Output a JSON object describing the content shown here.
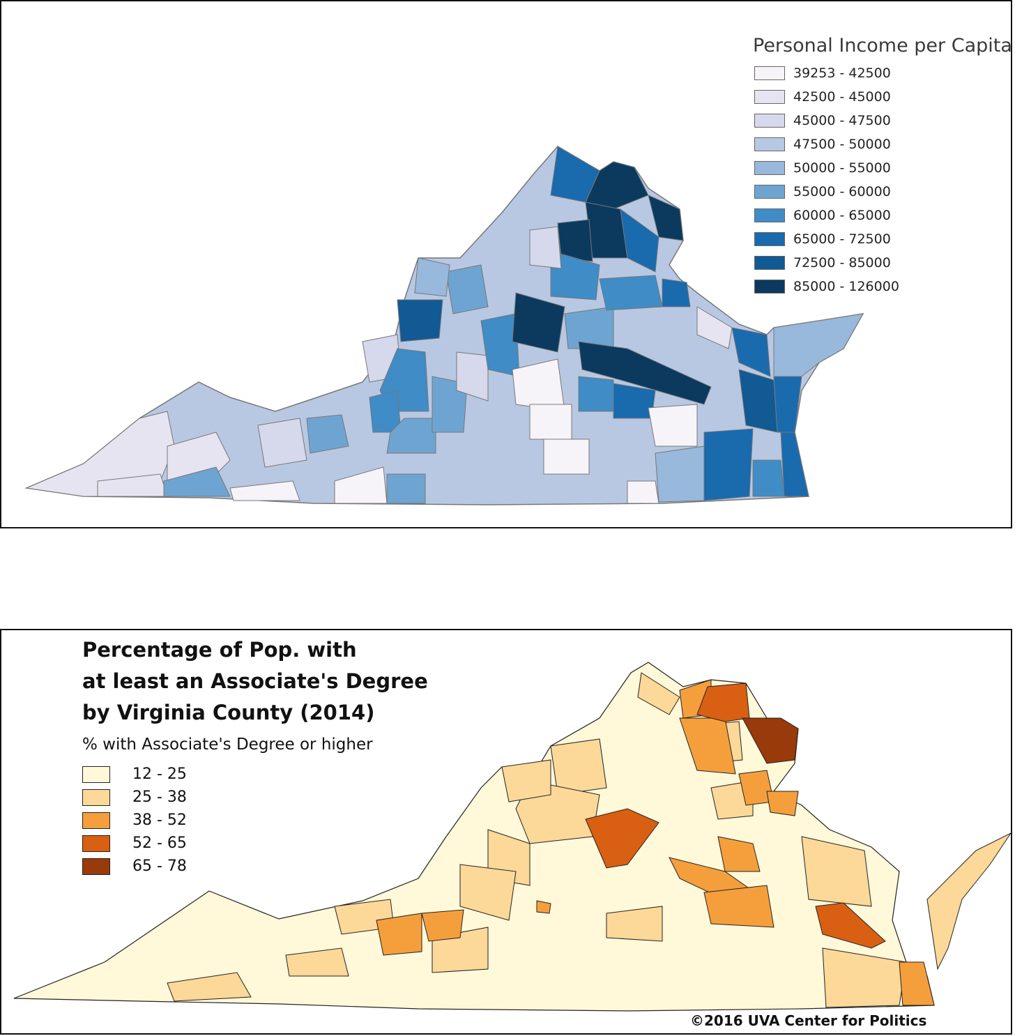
{
  "income_map": {
    "legend_title": "Personal Income per Capita",
    "classes": [
      {
        "label": "39253 - 42500",
        "color": "#f7f4f9"
      },
      {
        "label": "42500 - 45000",
        "color": "#e7e4f1"
      },
      {
        "label": "45000 - 47500",
        "color": "#d6d8ec"
      },
      {
        "label": "47500 - 50000",
        "color": "#b8c8e3"
      },
      {
        "label": "50000 - 55000",
        "color": "#98b8dc"
      },
      {
        "label": "55000 - 60000",
        "color": "#6ea4d1"
      },
      {
        "label": "60000 - 65000",
        "color": "#3f8cc6"
      },
      {
        "label": "65000 - 72500",
        "color": "#1a6aae"
      },
      {
        "label": "72500 - 85000",
        "color": "#115a93"
      },
      {
        "label": "85000 - 126000",
        "color": "#0b3a5e"
      }
    ]
  },
  "degree_map": {
    "title_lines": [
      "Percentage of Pop. with",
      "at least an Associate's Degree",
      "by Virginia County (2014)"
    ],
    "legend_title": "% with Associate's Degree or higher",
    "classes": [
      {
        "label": "12 - 25",
        "color": "#fff8d9"
      },
      {
        "label": "25 - 38",
        "color": "#fcd899"
      },
      {
        "label": "38 - 52",
        "color": "#f59f3c"
      },
      {
        "label": "52 - 65",
        "color": "#d95f12"
      },
      {
        "label": "65 - 78",
        "color": "#993a0a"
      }
    ],
    "credit": "©2016 UVA Center for Politics"
  }
}
